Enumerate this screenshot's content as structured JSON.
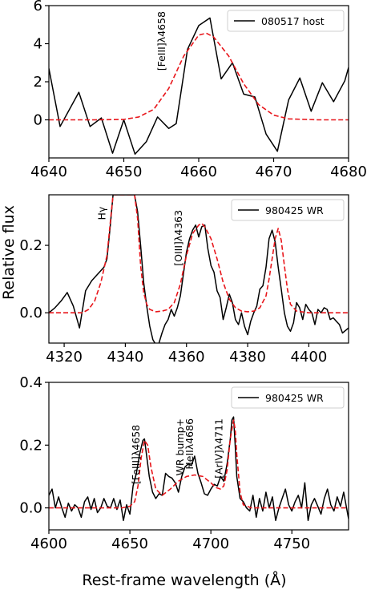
{
  "figure": {
    "xlabel": "Rest-frame wavelength (Å)",
    "ylabel": "Relative flux"
  },
  "chart_data": [
    {
      "type": "line",
      "xlim": [
        4640,
        4680
      ],
      "ylim": [
        -2,
        6
      ],
      "xticks": [
        4640,
        4650,
        4660,
        4670,
        4680
      ],
      "yticks": [
        0,
        2,
        4,
        6
      ],
      "legend": {
        "position": "top-right",
        "label": "080517 host"
      },
      "annotations": [
        {
          "text": "[FeIII]λ4658",
          "x": 4655.5,
          "y": 5.7
        }
      ],
      "series": [
        {
          "name": "080517 host",
          "style": "solid",
          "color": "#000000",
          "x": [
            4640,
            4641.5,
            4644,
            4645.5,
            4647,
            4648.5,
            4650,
            4651.5,
            4653,
            4654.5,
            4656,
            4657,
            4658.5,
            4660,
            4661.5,
            4663,
            4664.5,
            4666,
            4667.5,
            4669,
            4670.5,
            4672,
            4673.5,
            4675,
            4676.5,
            4678,
            4679.5,
            4680
          ],
          "values": [
            2.7,
            -0.35,
            1.45,
            -0.35,
            0.1,
            -1.75,
            0.0,
            -1.8,
            -1.15,
            0.15,
            -0.45,
            -0.2,
            3.7,
            4.95,
            5.35,
            2.15,
            3.0,
            1.35,
            1.2,
            -0.75,
            -1.65,
            1.05,
            2.2,
            0.45,
            1.95,
            0.95,
            2.05,
            2.75
          ]
        },
        {
          "name": "",
          "style": "dashed",
          "color": "#e8161b",
          "x": [
            4640,
            4646,
            4650,
            4652,
            4654,
            4656,
            4658,
            4660,
            4661,
            4662,
            4664,
            4666,
            4668,
            4670,
            4672,
            4676,
            4680
          ],
          "values": [
            0.0,
            0.0,
            0.02,
            0.15,
            0.55,
            1.65,
            3.35,
            4.45,
            4.55,
            4.35,
            3.35,
            1.9,
            0.8,
            0.25,
            0.05,
            0.0,
            0.0
          ]
        }
      ]
    },
    {
      "type": "line",
      "xlim": [
        4315,
        4413
      ],
      "ylim": [
        -0.09,
        0.35
      ],
      "xticks": [
        4320,
        4340,
        4360,
        4380,
        4400
      ],
      "yticks": [
        0.0,
        0.2
      ],
      "legend": {
        "position": "top-right",
        "label": "980425 WR"
      },
      "annotations": [
        {
          "text": "Hγ",
          "x": 4333.5,
          "y": 0.315
        },
        {
          "text": "[OIII]λ4363",
          "x": 4358.5,
          "y": 0.305
        }
      ],
      "series": [
        {
          "name": "980425 WR",
          "style": "solid",
          "color": "#000000",
          "x": [
            4315,
            4317,
            4319,
            4321,
            4323,
            4325,
            4327,
            4329,
            4331,
            4333,
            4334,
            4335,
            4336,
            4337,
            4338,
            4341,
            4342,
            4343,
            4344,
            4345,
            4346,
            4347,
            4348,
            4349,
            4350,
            4351,
            4352,
            4353,
            4354,
            4355,
            4356,
            4357,
            4358,
            4359,
            4360,
            4361,
            4362,
            4363,
            4364,
            4365,
            4366,
            4367,
            4368,
            4369,
            4370,
            4371,
            4372,
            4373,
            4374,
            4375,
            4376,
            4377,
            4378,
            4379,
            4380,
            4381,
            4382,
            4383,
            4384,
            4385,
            4386,
            4387,
            4388,
            4389,
            4390,
            4391,
            4392,
            4393,
            4394,
            4395,
            4396,
            4397,
            4398,
            4399,
            4400,
            4401,
            4402,
            4403,
            4404,
            4405,
            4406,
            4407,
            4408,
            4409,
            4410,
            4411,
            4413
          ],
          "values": [
            0.0,
            0.015,
            0.035,
            0.06,
            0.02,
            -0.045,
            0.065,
            0.095,
            0.115,
            0.135,
            0.16,
            0.25,
            0.35,
            0.35,
            0.35,
            0.35,
            0.35,
            0.35,
            0.3,
            0.2,
            0.09,
            0.02,
            -0.04,
            -0.08,
            -0.095,
            -0.09,
            -0.06,
            -0.035,
            -0.02,
            0.01,
            -0.01,
            0.015,
            0.05,
            0.115,
            0.18,
            0.22,
            0.245,
            0.26,
            0.225,
            0.255,
            0.26,
            0.19,
            0.14,
            0.12,
            0.065,
            0.045,
            -0.02,
            0.015,
            0.055,
            0.03,
            -0.02,
            -0.035,
            0.0,
            -0.04,
            -0.065,
            -0.025,
            0.0,
            0.02,
            0.07,
            0.08,
            0.135,
            0.22,
            0.245,
            0.21,
            0.135,
            0.07,
            0.0,
            -0.04,
            -0.055,
            -0.03,
            0.03,
            0.015,
            -0.02,
            0.025,
            0.01,
            0.0,
            -0.035,
            0.01,
            0.0,
            0.015,
            0.01,
            -0.02,
            -0.015,
            -0.025,
            -0.035,
            -0.06,
            -0.045
          ]
        },
        {
          "name": "",
          "style": "dashed",
          "color": "#e8161b",
          "x": [
            4315,
            4326,
            4328,
            4330,
            4332,
            4334,
            4335,
            4336,
            4337,
            4338,
            4342,
            4343,
            4344,
            4345,
            4346,
            4347,
            4348,
            4350,
            4352,
            4354,
            4356,
            4358,
            4360,
            4362,
            4364,
            4365,
            4366,
            4368,
            4370,
            4372,
            4374,
            4376,
            4378,
            4380,
            4382,
            4384,
            4386,
            4387,
            4388,
            4389,
            4390,
            4391,
            4392,
            4393,
            4394,
            4396,
            4400,
            4413
          ],
          "values": [
            0.0,
            0.0,
            0.01,
            0.035,
            0.09,
            0.17,
            0.26,
            0.35,
            0.35,
            0.35,
            0.35,
            0.35,
            0.28,
            0.14,
            0.06,
            0.025,
            0.01,
            0.003,
            0.005,
            0.01,
            0.03,
            0.085,
            0.17,
            0.235,
            0.26,
            0.265,
            0.255,
            0.22,
            0.16,
            0.09,
            0.04,
            0.015,
            0.005,
            0.003,
            0.005,
            0.015,
            0.05,
            0.1,
            0.16,
            0.22,
            0.25,
            0.215,
            0.14,
            0.07,
            0.025,
            0.005,
            0.0,
            0.0
          ]
        }
      ]
    },
    {
      "type": "line",
      "xlim": [
        4600,
        4785
      ],
      "ylim": [
        -0.07,
        0.4
      ],
      "xticks": [
        4600,
        4650,
        4700,
        4750
      ],
      "yticks": [
        0.0,
        0.2,
        0.4
      ],
      "legend": {
        "position": "top-right",
        "label": "980425 WR"
      },
      "annotations": [
        {
          "text": "[FeIII]λ4658",
          "x": 4656,
          "y": 0.265
        },
        {
          "text": "WR bump+",
          "x": 4683,
          "y": 0.285
        },
        {
          "text": "HeIIλ4686",
          "x": 4689,
          "y": 0.285
        },
        {
          "text": "[ArIV]λ4711",
          "x": 4707,
          "y": 0.285
        }
      ],
      "series": [
        {
          "name": "980425 WR",
          "style": "solid",
          "color": "#000000",
          "x": [
            4600,
            4602,
            4604,
            4606,
            4608,
            4610,
            4612,
            4614,
            4616,
            4618,
            4620,
            4622,
            4624,
            4626,
            4628,
            4630,
            4632,
            4634,
            4636,
            4638,
            4640,
            4642,
            4644,
            4646,
            4648,
            4650,
            4652,
            4654,
            4656,
            4658,
            4659,
            4660,
            4662,
            4664,
            4666,
            4668,
            4670,
            4672,
            4674,
            4676,
            4678,
            4680,
            4682,
            4684,
            4686,
            4688,
            4690,
            4692,
            4694,
            4696,
            4698,
            4700,
            4702,
            4704,
            4706,
            4708,
            4710,
            4712,
            4713,
            4714,
            4715,
            4716,
            4718,
            4720,
            4722,
            4724,
            4726,
            4728,
            4730,
            4732,
            4734,
            4736,
            4738,
            4740,
            4742,
            4744,
            4746,
            4748,
            4750,
            4752,
            4754,
            4756,
            4758,
            4760,
            4762,
            4764,
            4766,
            4768,
            4770,
            4772,
            4774,
            4776,
            4778,
            4780,
            4782,
            4785
          ],
          "values": [
            0.04,
            0.06,
            0.0,
            0.035,
            0.0,
            -0.03,
            0.015,
            -0.01,
            0.01,
            0.0,
            -0.03,
            0.02,
            0.035,
            -0.005,
            0.03,
            -0.015,
            0.0,
            0.03,
            0.005,
            0.0,
            0.03,
            -0.005,
            0.025,
            -0.04,
            0.01,
            -0.02,
            0.07,
            0.11,
            0.17,
            0.215,
            0.22,
            0.18,
            0.1,
            0.05,
            0.03,
            0.045,
            0.04,
            0.11,
            0.1,
            0.095,
            0.08,
            0.05,
            0.1,
            0.13,
            0.14,
            0.135,
            0.165,
            0.11,
            0.08,
            0.045,
            0.04,
            0.06,
            0.075,
            0.07,
            0.1,
            0.085,
            0.14,
            0.22,
            0.28,
            0.29,
            0.2,
            0.1,
            0.03,
            0.02,
            0.0,
            -0.01,
            0.04,
            -0.03,
            0.03,
            -0.01,
            0.05,
            0.0,
            0.035,
            -0.04,
            0.0,
            0.03,
            0.06,
            0.01,
            -0.01,
            0.02,
            0.04,
            0.0,
            0.08,
            -0.04,
            0.01,
            0.03,
            0.005,
            -0.02,
            0.03,
            0.06,
            0.01,
            -0.01,
            0.035,
            0.005,
            0.05,
            -0.035
          ]
        },
        {
          "name": "",
          "style": "dashed",
          "color": "#e8161b",
          "x": [
            4600,
            4645,
            4650,
            4653,
            4655,
            4657,
            4659,
            4661,
            4663,
            4666,
            4670,
            4675,
            4680,
            4685,
            4690,
            4695,
            4700,
            4703,
            4706,
            4708,
            4710,
            4712,
            4714,
            4715,
            4716,
            4718,
            4720,
            4725,
            4785
          ],
          "values": [
            0.0,
            0.0,
            0.005,
            0.02,
            0.07,
            0.16,
            0.215,
            0.2,
            0.13,
            0.06,
            0.04,
            0.06,
            0.085,
            0.1,
            0.105,
            0.1,
            0.08,
            0.065,
            0.06,
            0.07,
            0.12,
            0.22,
            0.28,
            0.25,
            0.17,
            0.05,
            0.01,
            0.0,
            0.0
          ]
        }
      ]
    }
  ]
}
